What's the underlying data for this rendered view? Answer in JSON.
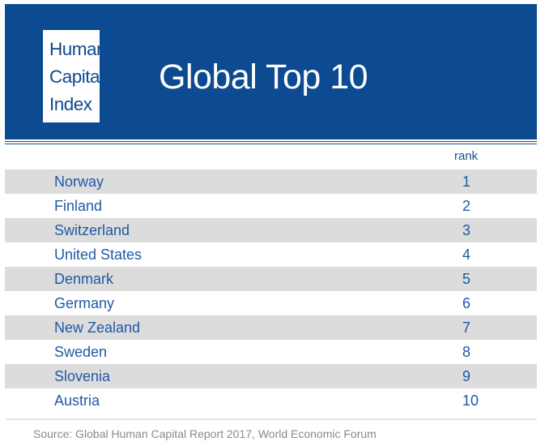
{
  "header": {
    "logo_lines": [
      "Human",
      "Capital",
      "Index"
    ],
    "title": "Global Top 10"
  },
  "table": {
    "rank_header": "rank",
    "rows": [
      {
        "country": "Norway",
        "rank": "1"
      },
      {
        "country": "Finland",
        "rank": "2"
      },
      {
        "country": "Switzerland",
        "rank": "3"
      },
      {
        "country": "United States",
        "rank": "4"
      },
      {
        "country": "Denmark",
        "rank": "5"
      },
      {
        "country": "Germany",
        "rank": "6"
      },
      {
        "country": "New Zealand",
        "rank": "7"
      },
      {
        "country": "Sweden",
        "rank": "8"
      },
      {
        "country": "Slovenia",
        "rank": "9"
      },
      {
        "country": "Austria",
        "rank": "10"
      }
    ]
  },
  "footer": {
    "source": "Source: Global Human Capital Report 2017, World Economic Forum"
  },
  "colors": {
    "brand_blue": "#0c4a92",
    "row_gray": "#dcdcdc",
    "text_blue": "#1f5aa6"
  }
}
